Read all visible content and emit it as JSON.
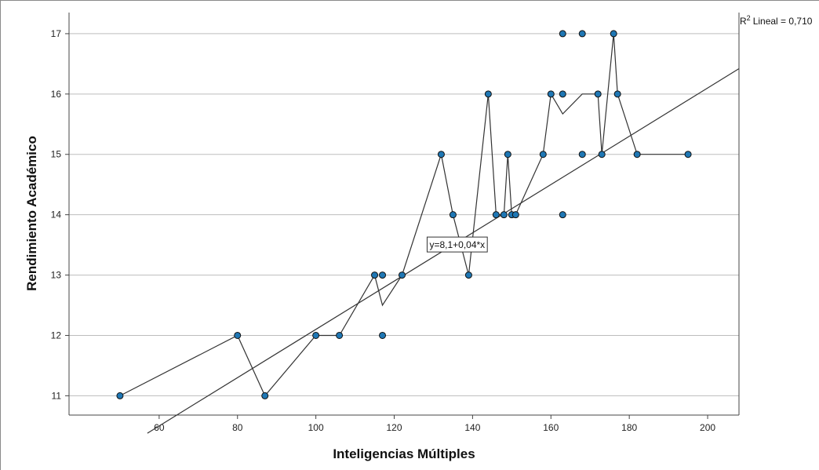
{
  "chart_data": {
    "type": "scatter",
    "title": "",
    "xlabel": "Inteligencias Múltiples",
    "ylabel": "Rendimiento Académico",
    "xlim": [
      37,
      208
    ],
    "ylim": [
      10.68,
      17.35
    ],
    "x_ticks": [
      "60",
      "80",
      "100",
      "120",
      "140",
      "160",
      "180",
      "200"
    ],
    "y_ticks": [
      "11",
      "12",
      "13",
      "14",
      "15",
      "16",
      "17"
    ],
    "grid": "horizontal",
    "points": [
      {
        "x": 50,
        "y": 11
      },
      {
        "x": 80,
        "y": 12
      },
      {
        "x": 87,
        "y": 11
      },
      {
        "x": 100,
        "y": 12
      },
      {
        "x": 106,
        "y": 12
      },
      {
        "x": 115,
        "y": 13
      },
      {
        "x": 117,
        "y": 13
      },
      {
        "x": 117,
        "y": 12
      },
      {
        "x": 122,
        "y": 13
      },
      {
        "x": 132,
        "y": 15
      },
      {
        "x": 135,
        "y": 14
      },
      {
        "x": 139,
        "y": 13
      },
      {
        "x": 144,
        "y": 16
      },
      {
        "x": 146,
        "y": 14
      },
      {
        "x": 148,
        "y": 14
      },
      {
        "x": 149,
        "y": 15
      },
      {
        "x": 150,
        "y": 14
      },
      {
        "x": 151,
        "y": 14
      },
      {
        "x": 158,
        "y": 15
      },
      {
        "x": 160,
        "y": 16
      },
      {
        "x": 163,
        "y": 17
      },
      {
        "x": 163,
        "y": 16
      },
      {
        "x": 163,
        "y": 14
      },
      {
        "x": 168,
        "y": 17
      },
      {
        "x": 168,
        "y": 15
      },
      {
        "x": 172,
        "y": 16
      },
      {
        "x": 173,
        "y": 15
      },
      {
        "x": 176,
        "y": 17
      },
      {
        "x": 177,
        "y": 16
      },
      {
        "x": 182,
        "y": 15
      },
      {
        "x": 195,
        "y": 15
      }
    ],
    "mean_line": [
      [
        50,
        11
      ],
      [
        80,
        12
      ],
      [
        87,
        11
      ],
      [
        100,
        12
      ],
      [
        106,
        12
      ],
      [
        115,
        13
      ],
      [
        117,
        12.5
      ],
      [
        122,
        13
      ],
      [
        132,
        15
      ],
      [
        135,
        14
      ],
      [
        139,
        13
      ],
      [
        144,
        16
      ],
      [
        146,
        14
      ],
      [
        148,
        14
      ],
      [
        149,
        15
      ],
      [
        150,
        14
      ],
      [
        151,
        14
      ],
      [
        158,
        15
      ],
      [
        160,
        16
      ],
      [
        163,
        15.67
      ],
      [
        168,
        16
      ],
      [
        172,
        16
      ],
      [
        173,
        15
      ],
      [
        176,
        17
      ],
      [
        177,
        16
      ],
      [
        182,
        15
      ],
      [
        195,
        15
      ]
    ],
    "fit_line": {
      "intercept": 8.1,
      "slope": 0.04,
      "x_from": 57,
      "x_to": 208
    },
    "fit_label": "y=8,1+0,04*x",
    "fit_label_at": {
      "x": 129,
      "y": 13.5
    },
    "r2_label": "Lineal = 0,710",
    "r2_prefix": "R",
    "r2_sup": "2",
    "colors": {
      "point_fill": "#1f77b4",
      "point_stroke": "#111111",
      "line": "#333333",
      "grid": "#bdbdbd"
    }
  }
}
